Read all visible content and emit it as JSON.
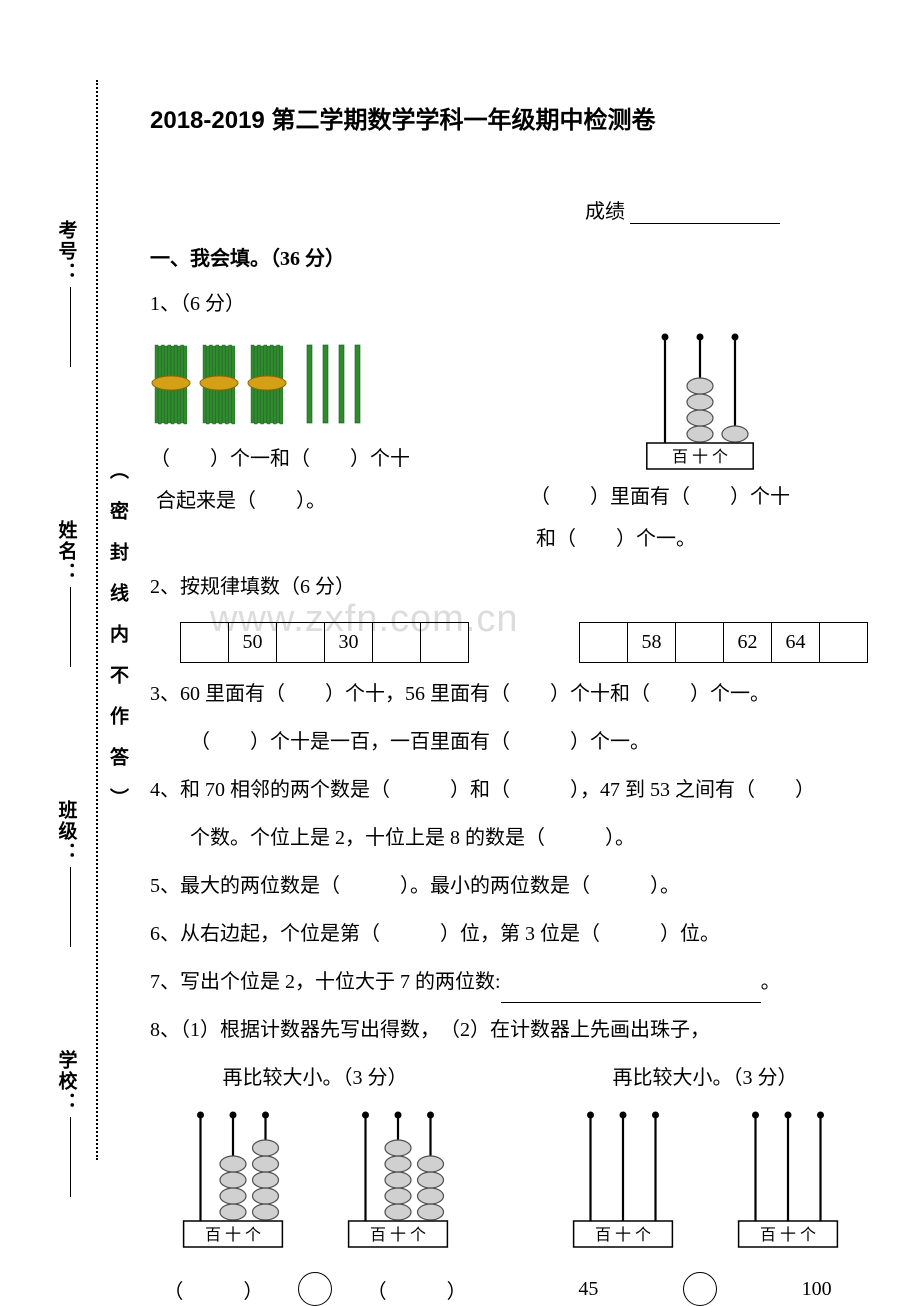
{
  "colors": {
    "text": "#000000",
    "background": "#ffffff",
    "bundle_green": "#2e8b2e",
    "bundle_tie": "#d4a017",
    "bead_fill": "#d0d0d0",
    "bead_stroke": "#505050",
    "watermark": "#dcdcdc"
  },
  "margin": {
    "school": "学校：",
    "class": "班级：",
    "name": "姓名：",
    "exam_no": "考号：",
    "seal_text": "（密封线内不作答）"
  },
  "title": "2018-2019 第二学期数学学科一年级期中检测卷",
  "score_label": "成绩",
  "section1_head": "一、我会填。（36 分）",
  "q1": {
    "label": "1、（6 分）",
    "left_line1": "（　　）个一和（　　）个十",
    "left_line2": "合起来是（　　）。",
    "right_line1": "（　　）里面有（　　）个十",
    "right_line2": "和（　　）个一。",
    "abacus_labels": "百 十 个",
    "bundles_tens": 3,
    "bundles_ones": 4,
    "abacus_beads": {
      "hundreds": 0,
      "tens": 4,
      "ones": 1
    }
  },
  "q2": {
    "label": "2、按规律填数（6 分）",
    "table1": [
      "",
      "50",
      "",
      "30",
      "",
      ""
    ],
    "table2": [
      "",
      "58",
      "",
      "62",
      "64",
      ""
    ]
  },
  "q3": {
    "line1": "3、60 里面有（　　）个十，56 里面有（　　）个十和（　　）个一。",
    "line2": "（　　）个十是一百，一百里面有（　　　）个一。"
  },
  "q4": {
    "line1": "4、和 70 相邻的两个数是（　　　）和（　　　），47 到 53 之间有（　　）",
    "line2": "个数。个位上是 2，十位上是 8 的数是（　　　）。"
  },
  "q5": "5、最大的两位数是（　　　）。最小的两位数是（　　　）。",
  "q6": "6、从右边起，个位是第（　　　）位，第 3 位是（　　　）位。",
  "q7": {
    "prefix": "7、写出个位是 2，十位大于 7 的两位数:",
    "suffix": "。"
  },
  "q8": {
    "line1": "8、（1）根据计数器先写出得数，　（2）在计数器上先画出珠子，",
    "sub1": "再比较大小。（3 分）",
    "sub2": "再比较大小。（3 分）",
    "abacus_labels": "百 十 个",
    "left_a": {
      "hundreds": 0,
      "tens": 4,
      "ones": 5
    },
    "left_b": {
      "hundreds": 0,
      "tens": 5,
      "ones": 4
    },
    "cmp_left_a": "（　　　）",
    "cmp_left_b": "（　　　）",
    "cmp_right_a": "45",
    "cmp_right_b": "100"
  },
  "watermark": "www.zxfn.com.cn"
}
